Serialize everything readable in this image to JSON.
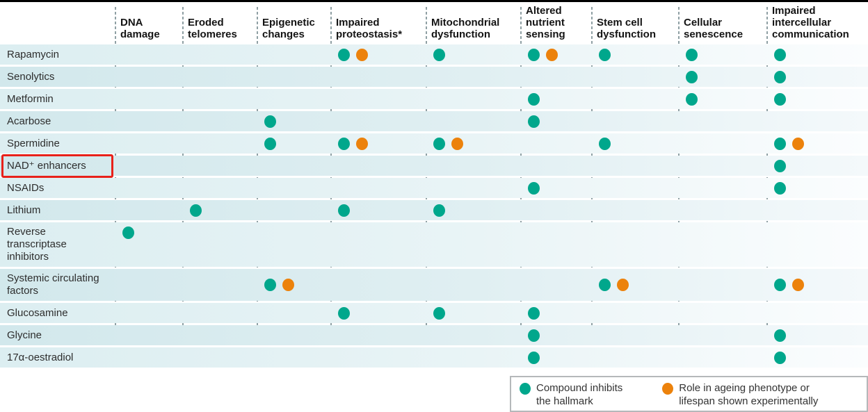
{
  "chart_data": {
    "type": "table",
    "title": "",
    "columns": [
      "DNA damage",
      "Eroded telomeres",
      "Epigenetic changes",
      "Impaired proteostasis*",
      "Mitochondrial dysfunction",
      "Altered nutrient sensing",
      "Stem cell dysfunction",
      "Cellular senescence",
      "Impaired intercellular communication"
    ],
    "rows": [
      {
        "label": "Rapamycin",
        "marks": [
          "",
          "",
          "",
          "TO",
          "T",
          "TO",
          "T",
          "T",
          "T"
        ]
      },
      {
        "label": "Senolytics",
        "marks": [
          "",
          "",
          "",
          "",
          "",
          "",
          "",
          "T",
          "T"
        ]
      },
      {
        "label": "Metformin",
        "marks": [
          "",
          "",
          "",
          "",
          "",
          "T",
          "",
          "T",
          "T"
        ]
      },
      {
        "label": "Acarbose",
        "marks": [
          "",
          "",
          "T",
          "",
          "",
          "T",
          "",
          "",
          ""
        ]
      },
      {
        "label": "Spermidine",
        "marks": [
          "",
          "",
          "T",
          "TO",
          "TO",
          "",
          "T",
          "",
          "TO"
        ]
      },
      {
        "label": "NAD⁺ enhancers",
        "highlighted": true,
        "marks": [
          "",
          "",
          "",
          "",
          "",
          "",
          "",
          "",
          "T"
        ]
      },
      {
        "label": "NSAIDs",
        "marks": [
          "",
          "",
          "",
          "",
          "",
          "T",
          "",
          "",
          "T"
        ]
      },
      {
        "label": "Lithium",
        "marks": [
          "",
          "T",
          "",
          "T",
          "T",
          "",
          "",
          "",
          ""
        ]
      },
      {
        "label": "Reverse transcriptase inhibitors",
        "marks": [
          "T",
          "",
          "",
          "",
          "",
          "",
          "",
          "",
          ""
        ]
      },
      {
        "label": "Systemic circulating factors",
        "marks": [
          "",
          "",
          "TO",
          "",
          "",
          "",
          "TO",
          "",
          "TO"
        ]
      },
      {
        "label": "Glucosamine",
        "marks": [
          "",
          "",
          "",
          "T",
          "T",
          "T",
          "",
          "",
          ""
        ]
      },
      {
        "label": "Glycine",
        "marks": [
          "",
          "",
          "",
          "",
          "",
          "T",
          "",
          "",
          "T"
        ]
      },
      {
        "label": "17α-oestradiol",
        "marks": [
          "",
          "",
          "",
          "",
          "",
          "T",
          "",
          "",
          "T"
        ]
      }
    ],
    "mark_key": {
      "T": "teal dot = compound inhibits the hallmark",
      "O": "orange dot = role in ageing phenotype or lifespan shown experimentally"
    },
    "legend": [
      {
        "swatch": "teal",
        "text": "Compound inhibits the hallmark"
      },
      {
        "swatch": "orange",
        "text": "Role in ageing phenotype or lifespan shown experimentally"
      }
    ],
    "annotation": {
      "type": "red-highlight-box",
      "target_row": "NAD⁺ enhancers"
    }
  },
  "legend_display": {
    "item1_line1": "Compound inhibits",
    "item1_line2": "the hallmark",
    "item2_line1": "Role in ageing phenotype or",
    "item2_line2": "lifespan shown experimentally"
  },
  "colors": {
    "teal": "#00a78c",
    "orange": "#ec820c",
    "highlight_red": "#e8211a"
  }
}
